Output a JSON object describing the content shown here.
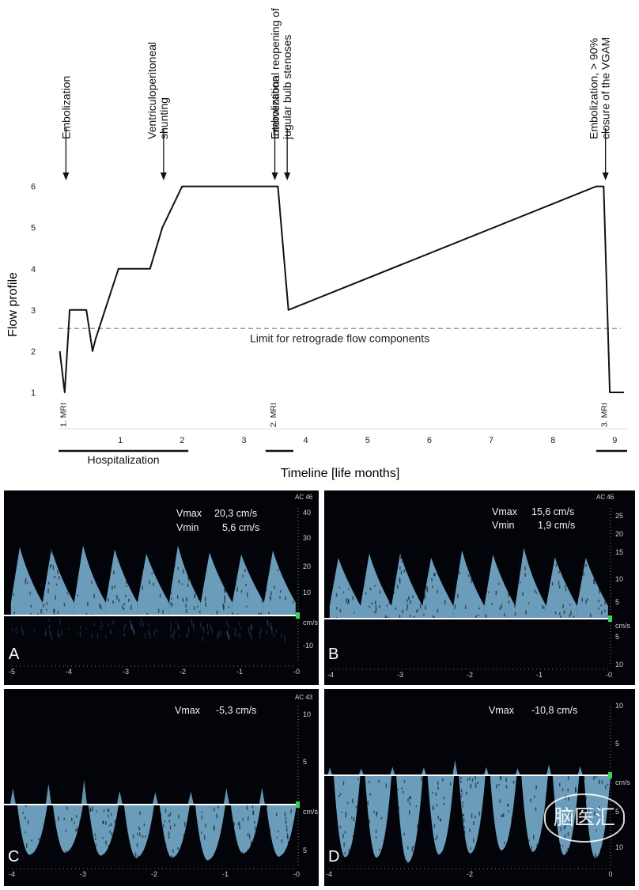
{
  "chart_data": [
    {
      "type": "line",
      "xlabel": "Timeline [life months]",
      "ylabel": "Flow profile",
      "x_ticks": [
        1,
        2,
        3,
        4,
        5,
        6,
        7,
        8,
        9
      ],
      "y_ticks": [
        1,
        2,
        3,
        4,
        5,
        6
      ],
      "xlim": [
        0,
        9.2
      ],
      "ylim": [
        0.5,
        6.3
      ],
      "series": [
        {
          "points": [
            [
              0.02,
              2
            ],
            [
              0.1,
              1
            ],
            [
              0.18,
              3
            ],
            [
              0.45,
              3
            ],
            [
              0.55,
              2
            ],
            [
              0.6,
              2.3
            ],
            [
              0.97,
              4
            ],
            [
              1.48,
              4
            ],
            [
              1.68,
              5
            ],
            [
              2.0,
              6
            ],
            [
              3.55,
              6
            ],
            [
              3.72,
              3
            ],
            [
              8.7,
              6
            ],
            [
              8.82,
              6
            ],
            [
              8.92,
              1
            ],
            [
              9.15,
              1
            ]
          ]
        }
      ],
      "threshold": {
        "y": 2.55,
        "label": "Limit for retrograde flow components"
      },
      "events": [
        {
          "x": 0.12,
          "label": "Embolization"
        },
        {
          "x": 1.7,
          "label": "Ventriculoperitoneal\nshunting"
        },
        {
          "x": 3.5,
          "label": "Embolization"
        },
        {
          "x": 3.7,
          "label": "Interventional reopening of\njugular bulb stenoses"
        },
        {
          "x": 8.85,
          "label": "Embolization, > 90%\nclosure of the VGAM"
        }
      ],
      "mri_marks": [
        {
          "x": 0.07,
          "label": "1. MRI"
        },
        {
          "x": 3.47,
          "label": "2. MRI"
        },
        {
          "x": 8.82,
          "label": "3. MRI"
        }
      ],
      "periods": [
        {
          "start": 0.0,
          "end": 2.1,
          "label": "Hospitalization"
        },
        {
          "start": 3.35,
          "end": 3.8,
          "label": ""
        },
        {
          "start": 8.7,
          "end": 9.2,
          "label": ""
        }
      ]
    }
  ],
  "panels": [
    {
      "letter": "A",
      "ac": "AC 46",
      "vmax_label": "Vmax",
      "vmax_value": "20,3 cm/s",
      "vmin_label": "Vmin",
      "vmin_value": "5,6 cm/s",
      "unit": "cm/s",
      "scale_ticks": [
        "40",
        "30",
        "20",
        "10",
        "",
        "-10"
      ],
      "x_ticks": [
        "-5",
        "-4",
        "-3",
        "-2",
        "-1",
        "-0"
      ],
      "waveform": {
        "direction": "up",
        "peaks": 9,
        "peak_cm_s": 20.3,
        "min_cm_s": 5.6
      }
    },
    {
      "letter": "B",
      "ac": "AC 46",
      "vmax_label": "Vmax",
      "vmax_value": "15,6 cm/s",
      "vmin_label": "Vmin",
      "vmin_value": "1,9 cm/s",
      "unit": "cm/s",
      "scale_ticks": [
        "25",
        "20",
        "15",
        "10",
        "5",
        "",
        "5",
        "10"
      ],
      "x_ticks": [
        "-4",
        "-3",
        "-2",
        "-1",
        "-0"
      ],
      "waveform": {
        "direction": "up",
        "peaks": 9,
        "peak_cm_s": 15.6,
        "min_cm_s": 1.9
      }
    },
    {
      "letter": "C",
      "ac": "AC 43",
      "vmax_label": "Vmax",
      "vmax_value": "-5,3 cm/s",
      "unit": "cm/s",
      "scale_ticks": [
        "10",
        "5",
        "",
        "5"
      ],
      "x_ticks": [
        "-4",
        "-3",
        "-2",
        "-1",
        "-0"
      ],
      "waveform": {
        "direction": "down",
        "peaks": 8,
        "peak_cm_s": -5.3
      }
    },
    {
      "letter": "D",
      "vmax_label": "Vmax",
      "vmax_value": "-10,8 cm/s",
      "unit": "cm/s",
      "scale_ticks": [
        "10",
        "5",
        "",
        "5",
        "10"
      ],
      "x_ticks": [
        "-4",
        "-2",
        "0"
      ],
      "waveform": {
        "direction": "down",
        "peaks": 9,
        "peak_cm_s": -10.8
      }
    }
  ],
  "watermark": "脑医汇",
  "colors": {
    "doppler": "#8fd0f6",
    "baseline": "#ffffff",
    "threshold": "#9a9a9a"
  }
}
